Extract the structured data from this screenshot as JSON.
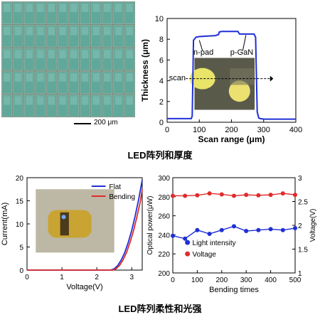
{
  "figure": {
    "caption_top": "LED阵列和厚度",
    "caption_bottom": "LED阵列柔性和光强",
    "scale_bar_label": "200 μm"
  },
  "colors": {
    "profile": "#1f2fd6",
    "flat": "#1f2fd6",
    "bending": "#e02b2b",
    "light_intensity": "#1f2fd6",
    "voltage": "#e02b2b",
    "led_cell": "#5fa89a"
  },
  "chart_data": [
    {
      "type": "line",
      "xlabel": "Scan range (μm)",
      "ylabel": "Thickness (μm)",
      "xlim": [
        0,
        400
      ],
      "ylim": [
        0,
        10
      ],
      "xticks": [
        0,
        100,
        200,
        300,
        400
      ],
      "yticks": [
        0,
        2,
        4,
        6,
        8,
        10
      ],
      "annotations": [
        "n-pad",
        "p-GaN",
        "scan"
      ],
      "series": [
        {
          "x": [
            0,
            60,
            75,
            78,
            82,
            90,
            100,
            120,
            150,
            160,
            162,
            170,
            200,
            220,
            225,
            240,
            270,
            275,
            280,
            285,
            290,
            300,
            350,
            400
          ],
          "y": [
            0.35,
            0.35,
            0.35,
            0.6,
            7.9,
            8.2,
            8.25,
            8.3,
            8.35,
            8.45,
            8.7,
            8.75,
            8.75,
            8.75,
            8.5,
            8.5,
            8.5,
            8.2,
            1.0,
            0.4,
            0.35,
            0.3,
            0.3,
            0.3
          ]
        }
      ]
    },
    {
      "type": "line",
      "xlabel": "Voltage(V)",
      "ylabel": "Current(mA)",
      "xlim": [
        0,
        3.3
      ],
      "ylim": [
        0,
        20
      ],
      "xticks": [
        0,
        1,
        2,
        3
      ],
      "yticks": [
        0,
        5,
        10,
        15,
        20
      ],
      "series": [
        {
          "name": "Flat",
          "x": [
            0,
            2.4,
            2.5,
            2.6,
            2.7,
            2.8,
            2.9,
            3.0,
            3.1,
            3.2,
            3.3
          ],
          "y": [
            0,
            0,
            0.3,
            1.0,
            2.2,
            3.8,
            6.0,
            8.6,
            11.8,
            15.4,
            19.5
          ]
        },
        {
          "name": "Bending",
          "x": [
            0,
            2.45,
            2.55,
            2.65,
            2.75,
            2.85,
            2.95,
            3.05,
            3.15,
            3.25,
            3.3
          ],
          "y": [
            0,
            0,
            0.3,
            1.0,
            2.2,
            3.8,
            6.0,
            8.5,
            11.6,
            15.0,
            17.5
          ]
        }
      ]
    },
    {
      "type": "line",
      "xlabel": "Bending times",
      "ylabel": "Optical power(μW)",
      "y2label": "Voltage(V)",
      "xlim": [
        0,
        500
      ],
      "ylim": [
        200,
        300
      ],
      "y2lim": [
        1,
        3
      ],
      "xticks": [
        0,
        100,
        200,
        300,
        400,
        500
      ],
      "yticks": [
        200,
        220,
        240,
        260,
        280,
        300
      ],
      "y2ticks": [
        1,
        1.5,
        2,
        2.5,
        3
      ],
      "series": [
        {
          "name": "Light intensity",
          "axis": "left",
          "x": [
            0,
            50,
            100,
            150,
            200,
            250,
            300,
            350,
            400,
            450,
            500
          ],
          "y": [
            239,
            236,
            245,
            241,
            245,
            249,
            244,
            245,
            246,
            245,
            247
          ]
        },
        {
          "name": "Voltage",
          "axis": "right",
          "x": [
            0,
            50,
            100,
            150,
            200,
            250,
            300,
            350,
            400,
            450,
            500
          ],
          "y": [
            2.62,
            2.62,
            2.63,
            2.67,
            2.65,
            2.62,
            2.64,
            2.63,
            2.64,
            2.67,
            2.64
          ]
        }
      ]
    }
  ]
}
